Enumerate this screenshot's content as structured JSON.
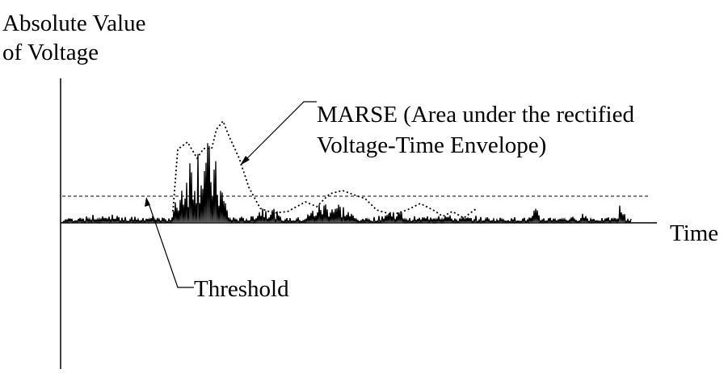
{
  "labels": {
    "y_axis_line1": "Absolute Value",
    "y_axis_line2": "of Voltage",
    "x_axis": "Time",
    "marse_line1": "MARSE (Area under the rectified",
    "marse_line2": "Voltage-Time Envelope)",
    "threshold": "Threshold"
  },
  "colors": {
    "ink": "#000000",
    "background": "#ffffff"
  },
  "threshold_level": 0.25
}
